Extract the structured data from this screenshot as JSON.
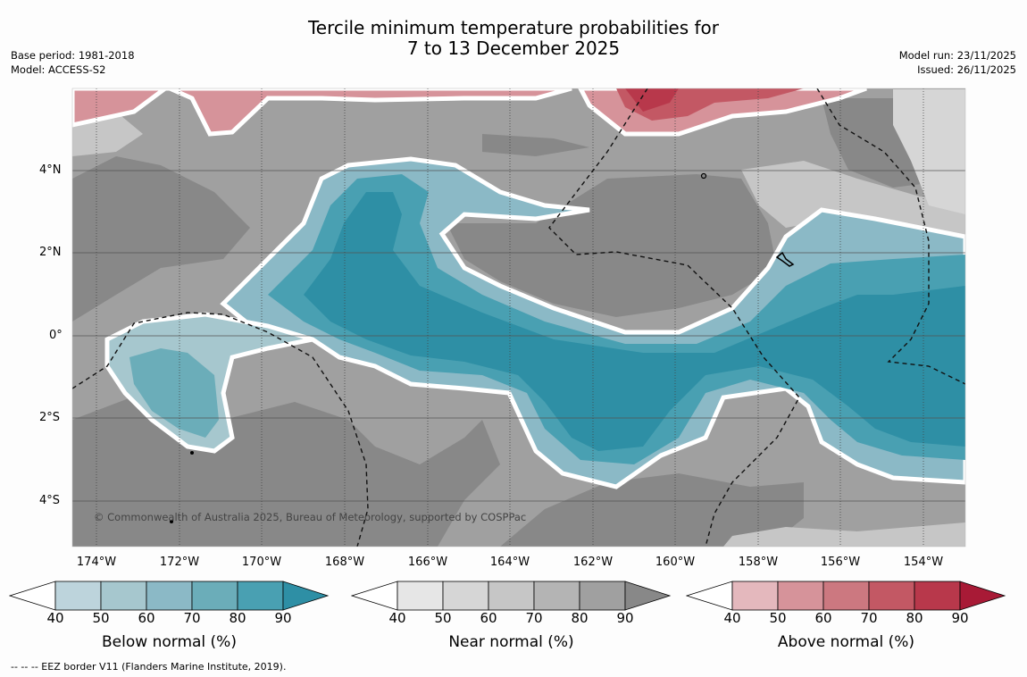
{
  "title": {
    "line1": "Tercile minimum temperature probabilities for",
    "line2": "7 to 13 December 2025"
  },
  "meta_left": {
    "base_period": "Base period: 1981-2018",
    "model": "Model: ACCESS-S2"
  },
  "meta_right": {
    "model_run": "Model run: 23/11/2025",
    "issued": "Issued: 26/11/2025"
  },
  "map": {
    "lat_labels": [
      "4°N",
      "2°N",
      "0°",
      "2°S",
      "4°S"
    ],
    "lon_labels": [
      "174°W",
      "172°W",
      "170°W",
      "168°W",
      "166°W",
      "164°W",
      "162°W",
      "160°W",
      "158°W",
      "156°W",
      "154°W"
    ],
    "copyright": "© Commonwealth of Australia 2025, Bureau of Meteorology, supported by COSPPac"
  },
  "colorbars": [
    {
      "title": "Below normal (%)",
      "ticks": [
        "40",
        "50",
        "60",
        "70",
        "80",
        "90"
      ],
      "colors": [
        "#bdd4dc",
        "#a6c7ce",
        "#8bb9c6",
        "#6badb9",
        "#49a0b2",
        "#2e8fa5"
      ]
    },
    {
      "title": "Near normal (%)",
      "ticks": [
        "40",
        "50",
        "60",
        "70",
        "80",
        "90"
      ],
      "colors": [
        "#e6e6e6",
        "#d6d6d6",
        "#c6c6c6",
        "#b4b4b4",
        "#a0a0a0",
        "#888888"
      ]
    },
    {
      "title": "Above normal (%)",
      "ticks": [
        "40",
        "50",
        "60",
        "70",
        "80",
        "90"
      ],
      "colors": [
        "#e4b8bd",
        "#d6939a",
        "#cc7880",
        "#c35864",
        "#b8384b",
        "#a81a36"
      ]
    }
  ],
  "footnote": "--  --  -- EEZ border V11 (Flanders Marine Institute, 2019)."
}
